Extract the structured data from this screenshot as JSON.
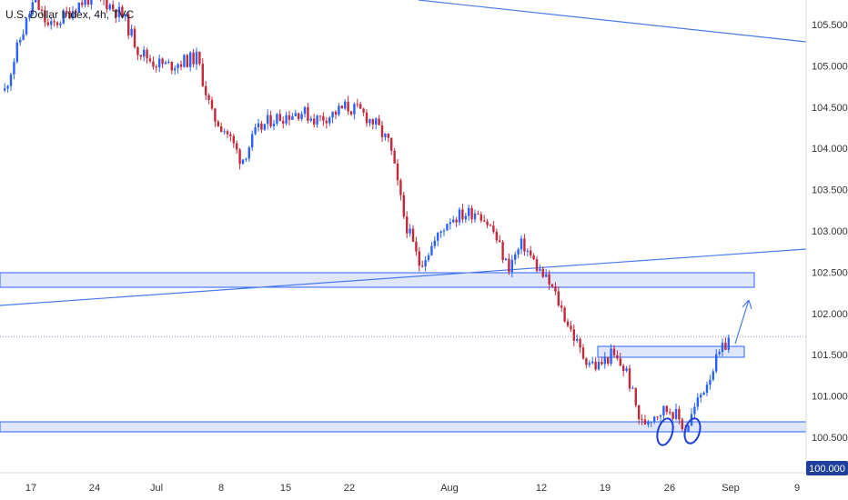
{
  "header": {
    "symbol_label": "U.S. Dollar Index, 4h, TVC"
  },
  "colors": {
    "up": "#2962ff",
    "down": "#c62839",
    "zone_fill": "#c7d3f7",
    "zone_stroke": "#2962ff",
    "trendline": "#4a7ae8",
    "marker": "#1e40d8",
    "last_price_line": "#7f93c7",
    "axis_text": "#333333",
    "axis_bg": "#ffffff",
    "price_badge_bg": "#1f3f9c",
    "price_badge_text": "#ffffff"
  },
  "chart_data": {
    "type": "candlestick",
    "title": "U.S. Dollar Index, 4h, TVC",
    "timeframe": "4h",
    "x_ticks": [
      "17",
      "24",
      "Jul",
      "8",
      "15",
      "22",
      "Aug",
      "12",
      "19",
      "26",
      "Sep",
      "9"
    ],
    "y_ticks": [
      "100.500",
      "101.000",
      "101.500",
      "102.000",
      "102.500",
      "103.000",
      "103.500",
      "104.000",
      "104.500",
      "105.000",
      "105.500"
    ],
    "ylim": [
      100.0,
      106.0
    ],
    "price_badge": "100.000",
    "last_price": 101.72,
    "grid": false,
    "path": [
      [
        "17",
        104.7
      ],
      [
        "19",
        105.3
      ],
      [
        "21",
        105.8
      ],
      [
        "24",
        105.45
      ],
      [
        "26",
        105.6
      ],
      [
        "28",
        105.75
      ],
      [
        "Jul",
        105.85
      ],
      [
        "2",
        105.75
      ],
      [
        "4",
        105.6
      ],
      [
        "6",
        105.2
      ],
      [
        "8",
        105.05
      ],
      [
        "10",
        105.0
      ],
      [
        "12",
        105.05
      ],
      [
        "13",
        105.1
      ],
      [
        "15",
        104.4
      ],
      [
        "17",
        104.2
      ],
      [
        "19",
        103.85
      ],
      [
        "21",
        104.2
      ],
      [
        "22",
        104.35
      ],
      [
        "24",
        104.4
      ],
      [
        "26",
        104.45
      ],
      [
        "28",
        104.35
      ],
      [
        "29",
        104.4
      ],
      [
        "Aug",
        104.5
      ],
      [
        "2",
        104.45
      ],
      [
        "3",
        104.3
      ],
      [
        "4",
        104.05
      ],
      [
        "5",
        103.15
      ],
      [
        "6",
        102.6
      ],
      [
        "7",
        102.85
      ],
      [
        "9",
        103.15
      ],
      [
        "11",
        103.2
      ],
      [
        "12",
        103.25
      ],
      [
        "14",
        103.0
      ],
      [
        "15",
        102.55
      ],
      [
        "16",
        102.85
      ],
      [
        "17",
        102.55
      ],
      [
        "18",
        102.3
      ],
      [
        "19",
        101.9
      ],
      [
        "21",
        101.5
      ],
      [
        "22",
        101.35
      ],
      [
        "23",
        101.5
      ],
      [
        "24",
        101.3
      ],
      [
        "25",
        100.65
      ],
      [
        "26",
        100.8
      ],
      [
        "27",
        100.85
      ],
      [
        "28",
        100.6
      ],
      [
        "29",
        101.0
      ],
      [
        "30",
        101.4
      ],
      [
        "Sep",
        101.72
      ]
    ],
    "zones": [
      {
        "name": "resistance-zone-upper",
        "top": 102.5,
        "bottom": 102.33,
        "from": "start",
        "to": "Sep"
      },
      {
        "name": "resistance-zone-mid",
        "top": 101.6,
        "bottom": 101.48,
        "from": "24",
        "to": "Sep"
      },
      {
        "name": "support-zone-lower",
        "top": 100.68,
        "bottom": 100.56,
        "from": "start",
        "to": "end"
      }
    ],
    "annotations": [
      "double bottom at 100.55",
      "projection arrow up toward 102.1"
    ]
  }
}
